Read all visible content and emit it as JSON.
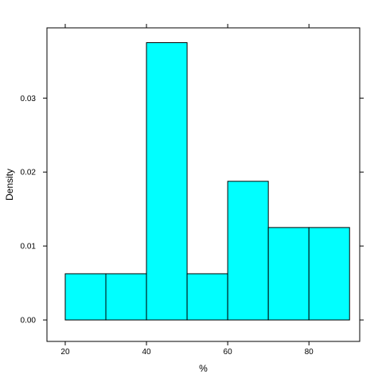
{
  "chart_data": {
    "type": "bar",
    "subtype": "histogram",
    "xlabel": "%",
    "ylabel": "Density",
    "bins": [
      {
        "from": 20,
        "to": 30,
        "density": 0.00625
      },
      {
        "from": 30,
        "to": 40,
        "density": 0.00625
      },
      {
        "from": 40,
        "to": 50,
        "density": 0.0375
      },
      {
        "from": 50,
        "to": 60,
        "density": 0.00625
      },
      {
        "from": 60,
        "to": 70,
        "density": 0.01875
      },
      {
        "from": 70,
        "to": 80,
        "density": 0.0125
      },
      {
        "from": 80,
        "to": 90,
        "density": 0.0125
      }
    ],
    "xlim": [
      15.5,
      92.5
    ],
    "ylim": [
      -0.0029,
      0.0395
    ],
    "xticks": [
      20,
      40,
      60,
      80
    ],
    "xtick_labels": [
      "20",
      "40",
      "60",
      "80"
    ],
    "yticks": [
      0.0,
      0.01,
      0.02,
      0.03
    ],
    "ytick_labels": [
      "0.00",
      "0.01",
      "0.02",
      "0.03"
    ],
    "bar_color": "#00ffff",
    "grid": false,
    "legend": "none"
  }
}
